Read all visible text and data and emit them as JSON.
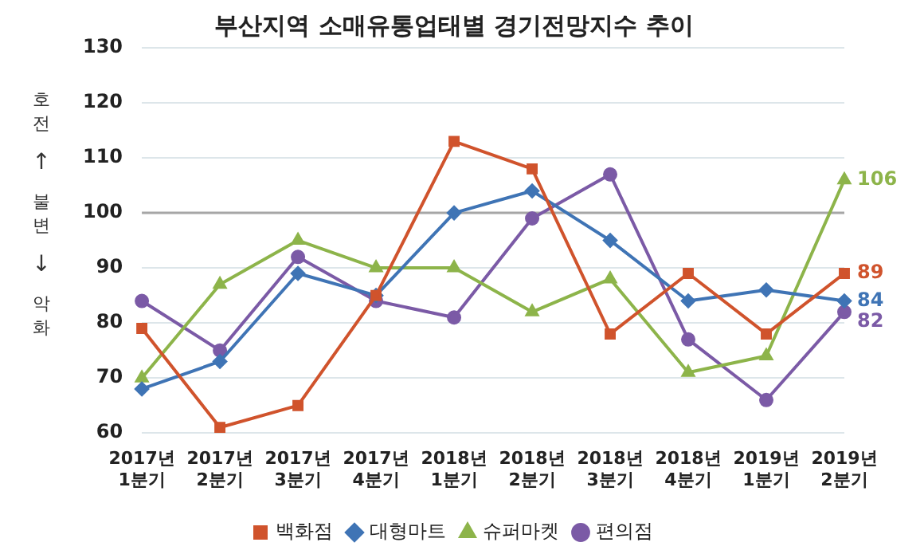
{
  "chart_data": {
    "type": "line",
    "title": "부산지역 소매유통업태별 경기전망지수 추이",
    "ylabel": "호전 ↑ 불변 ↓ 악화",
    "categories": [
      "2017년 1분기",
      "2017년 2분기",
      "2017년 3분기",
      "2017년 4분기",
      "2018년 1분기",
      "2018년 2분기",
      "2018년 3분기",
      "2018년 4분기",
      "2019년 1분기",
      "2019년 2분기"
    ],
    "series": [
      {
        "name": "백화점",
        "color": "#d0532c",
        "marker": "square",
        "values": [
          79,
          61,
          65,
          85,
          113,
          108,
          78,
          89,
          78,
          89
        ],
        "value_labels": [
          null,
          null,
          null,
          null,
          null,
          null,
          null,
          null,
          null,
          "89"
        ]
      },
      {
        "name": "대형마트",
        "color": "#3f74b5",
        "marker": "diamond",
        "values": [
          68,
          73,
          89,
          85,
          100,
          104,
          95,
          84,
          86,
          84
        ],
        "value_labels": [
          null,
          null,
          null,
          null,
          null,
          null,
          null,
          null,
          null,
          "84"
        ]
      },
      {
        "name": "슈퍼마켓",
        "color": "#8db44a",
        "marker": "triangle",
        "values": [
          70,
          87,
          95,
          90,
          90,
          82,
          88,
          71,
          74,
          106
        ],
        "value_labels": [
          null,
          null,
          null,
          null,
          null,
          null,
          null,
          null,
          null,
          "106"
        ]
      },
      {
        "name": "편의점",
        "color": "#7b5aa6",
        "marker": "circle",
        "values": [
          84,
          75,
          92,
          84,
          81,
          99,
          107,
          77,
          66,
          82
        ],
        "value_labels": [
          null,
          null,
          null,
          null,
          null,
          null,
          null,
          null,
          null,
          "82"
        ]
      }
    ],
    "ylim": [
      60,
      130
    ],
    "yticks": [
      60,
      70,
      80,
      90,
      100,
      110,
      120,
      130
    ],
    "grid": "y",
    "legend": "bottom",
    "line_style": "solid",
    "ref_lines": [
      {
        "axis": "y",
        "value": 100,
        "label": null,
        "color": "#a6a6a6"
      }
    ]
  }
}
